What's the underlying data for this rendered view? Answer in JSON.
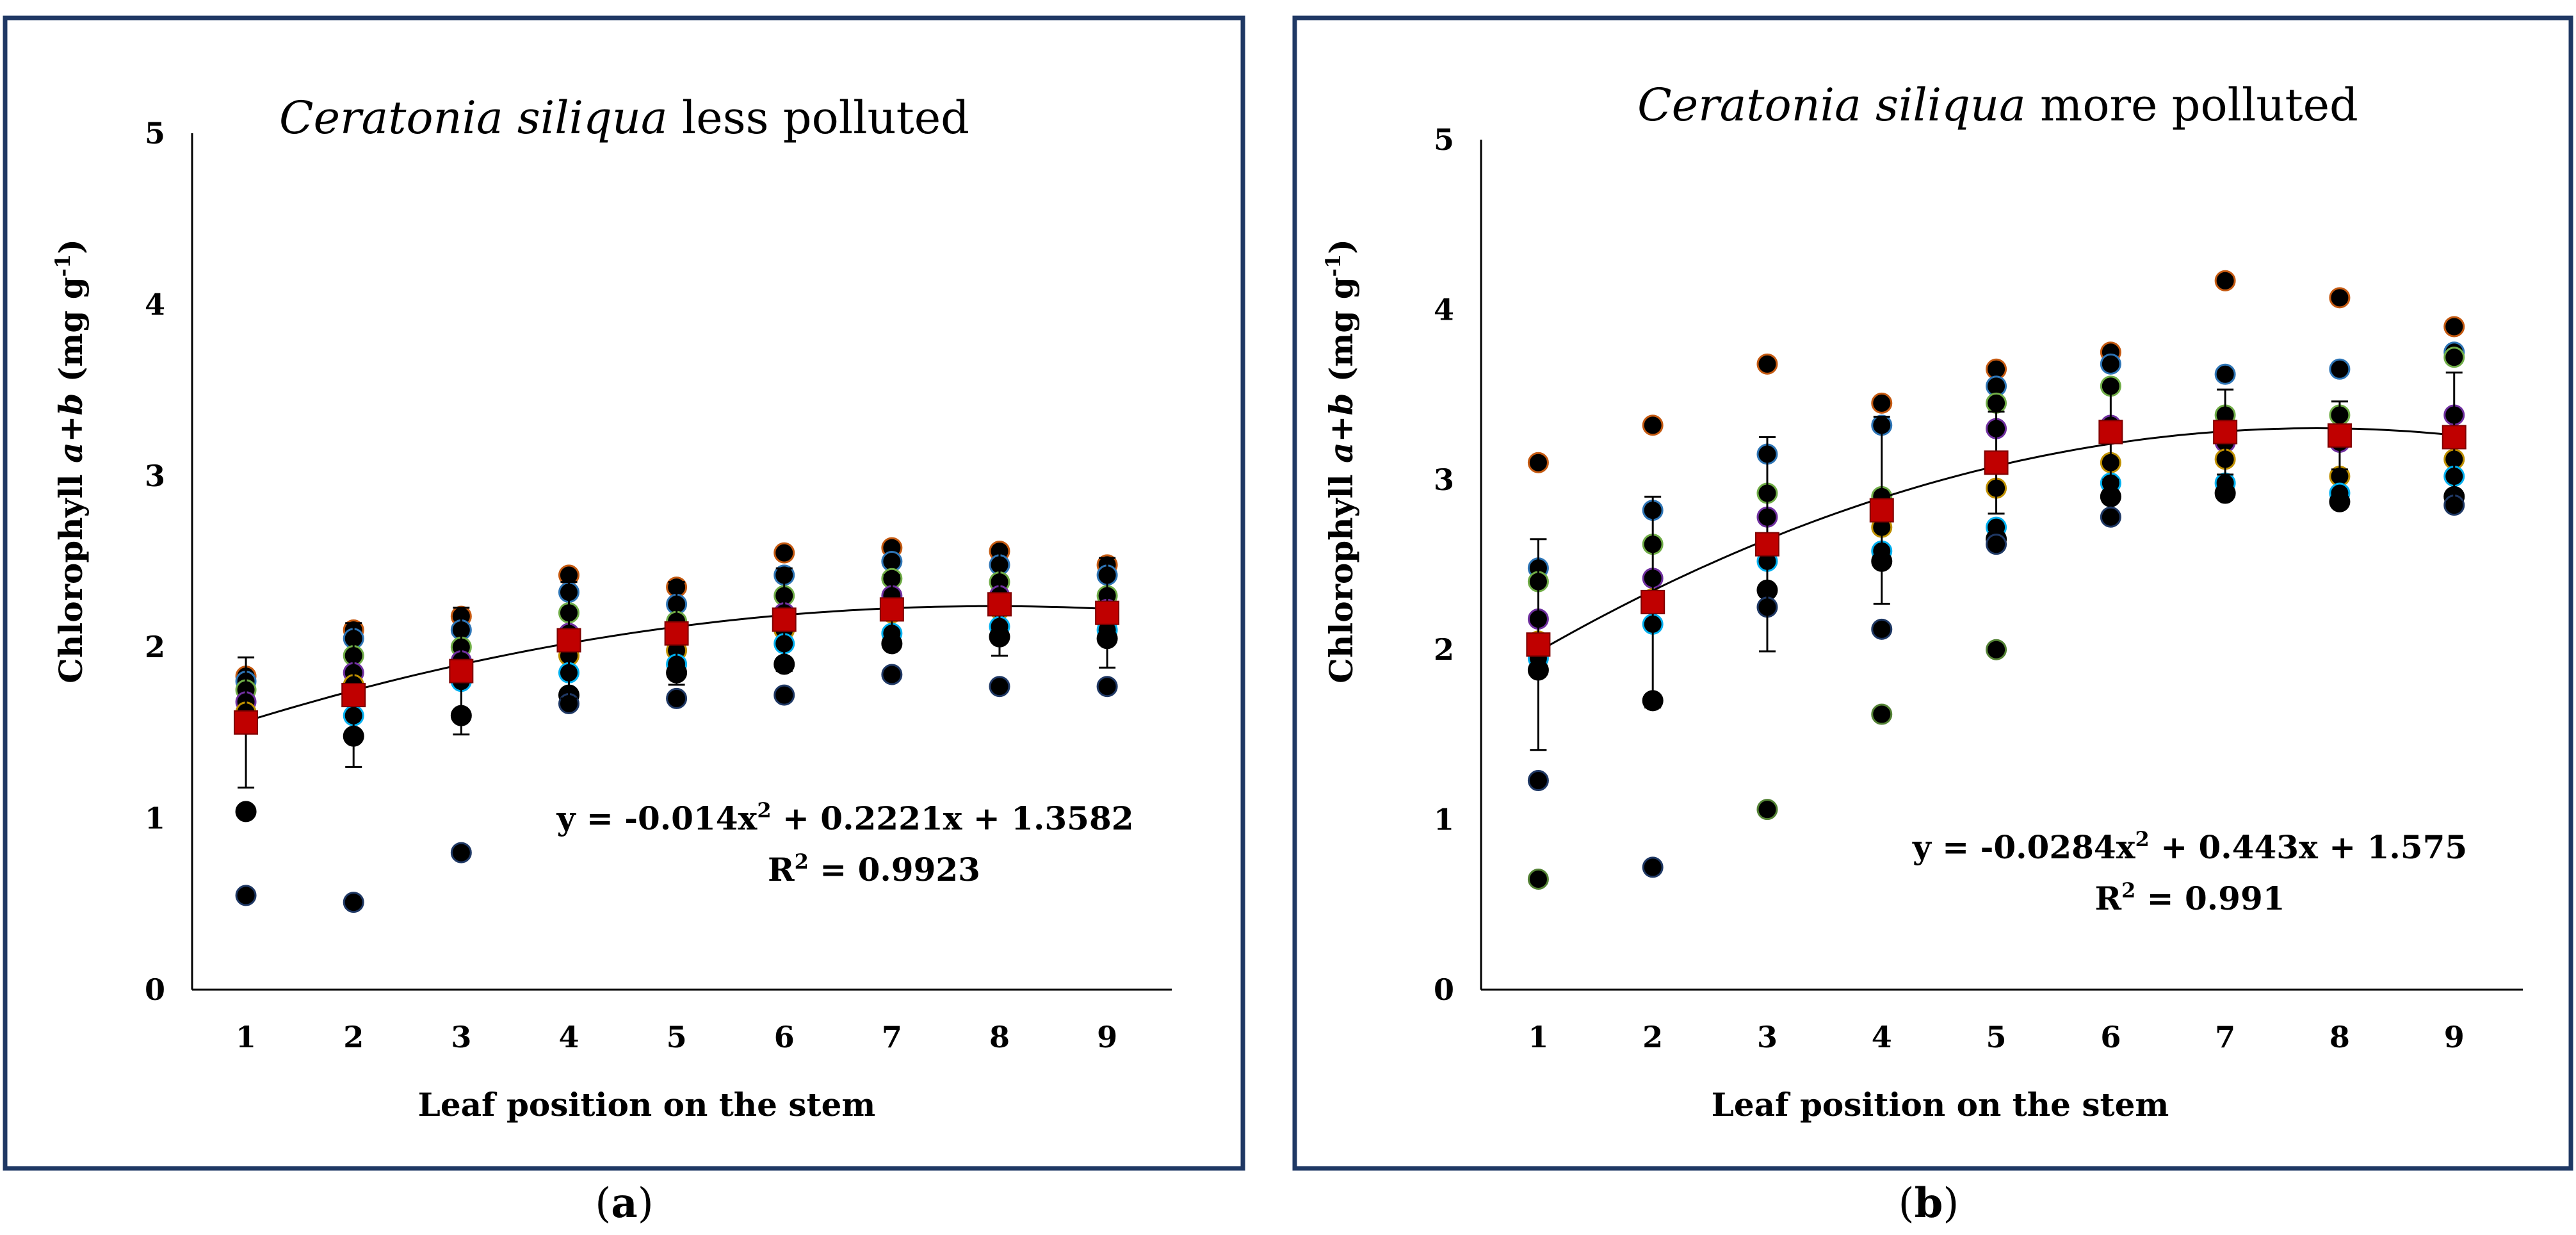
{
  "chart_data": [
    {
      "type": "scatter",
      "panel": "a",
      "title_italic": "Ceratonia siliqua",
      "title_rest": " less polluted",
      "xlabel": "Leaf position on the stem",
      "ylabel_prefix": "Chlorophyll",
      "ylabel_italic": "a+b",
      "ylabel_unit": "(mg g",
      "ylabel_sup": "-1",
      "ylabel_close": ")",
      "xlim": [
        0.5,
        9.6
      ],
      "ylim": [
        0,
        5
      ],
      "xticks": [
        1,
        2,
        3,
        4,
        5,
        6,
        7,
        8,
        9
      ],
      "yticks": [
        0,
        1,
        2,
        3,
        4,
        5
      ],
      "points": [
        [
          [
            1.83,
            1.8,
            1.75,
            1.68,
            1.62,
            1.55,
            1.04,
            0.55
          ],
          [
            2.1,
            2.05,
            1.95,
            1.85,
            1.78,
            1.6,
            1.48,
            0.51
          ],
          [
            2.18,
            2.1,
            2.0,
            1.92,
            1.85,
            1.8,
            1.6,
            0.8
          ],
          [
            2.42,
            2.32,
            2.2,
            2.08,
            1.95,
            1.85,
            1.72,
            1.67
          ],
          [
            2.35,
            2.25,
            2.15,
            2.05,
            1.98,
            1.9,
            1.85,
            1.7
          ],
          [
            2.55,
            2.42,
            2.3,
            2.2,
            2.1,
            2.02,
            1.9,
            1.72
          ],
          [
            2.58,
            2.5,
            2.4,
            2.3,
            2.2,
            2.08,
            2.02,
            1.84
          ],
          [
            2.56,
            2.48,
            2.38,
            2.3,
            2.22,
            2.12,
            2.06,
            1.77
          ],
          [
            2.48,
            2.42,
            2.3,
            2.22,
            2.15,
            2.1,
            2.05,
            1.77
          ]
        ]
      ],
      "means": [
        1.56,
        1.72,
        1.86,
        2.04,
        2.08,
        2.16,
        2.22,
        2.25,
        2.2
      ],
      "errors": [
        0.38,
        0.42,
        0.37,
        0.34,
        0.3,
        0.3,
        0.2,
        0.3,
        0.32
      ],
      "fit": {
        "a": -0.014,
        "b": 0.2221,
        "c": 1.3582
      },
      "equation_lhs": "y = -0.014x",
      "equation_sup": "2",
      "equation_rhs": " + 0.2221x + 1.3582",
      "r2_label": "R",
      "r2_sup": "2",
      "r2_value": " = 0.9923",
      "caption_open": "(",
      "caption_letter": "a",
      "caption_close": ")"
    },
    {
      "type": "scatter",
      "panel": "b",
      "title_italic": "Ceratonia siliqua",
      "title_rest": " more polluted",
      "xlabel": "Leaf position on the stem",
      "ylabel_prefix": "Chlorophyll",
      "ylabel_italic": "a+b",
      "ylabel_unit": "(mg g",
      "ylabel_sup": "-1",
      "ylabel_close": ")",
      "xlim": [
        0.5,
        9.6
      ],
      "ylim": [
        0,
        5
      ],
      "xticks": [
        1,
        2,
        3,
        4,
        5,
        6,
        7,
        8,
        9
      ],
      "yticks": [
        0,
        1,
        2,
        3,
        4,
        5
      ],
      "points": [
        [
          [
            3.1,
            2.48,
            2.4,
            2.18,
            2.05,
            1.95,
            1.88,
            1.23,
            0.65
          ],
          [
            3.32,
            2.82,
            2.62,
            2.42,
            2.3,
            2.15,
            1.7,
            0.72
          ],
          [
            3.68,
            3.15,
            2.92,
            2.78,
            2.62,
            2.52,
            2.35,
            2.25,
            1.06
          ],
          [
            3.45,
            3.32,
            2.9,
            2.82,
            2.72,
            2.58,
            2.52,
            2.12,
            1.62
          ],
          [
            3.65,
            3.55,
            3.45,
            3.3,
            2.95,
            2.72,
            2.65,
            2.62,
            2.0
          ],
          [
            3.75,
            3.68,
            3.55,
            3.32,
            3.1,
            2.98,
            2.9,
            2.78
          ],
          [
            4.17,
            3.62,
            3.38,
            3.22,
            3.12,
            2.98,
            2.92
          ],
          [
            4.07,
            3.65,
            3.38,
            3.22,
            3.02,
            2.92,
            2.87
          ],
          [
            3.9,
            3.75,
            3.72,
            3.38,
            3.12,
            3.02,
            2.9,
            2.85
          ]
        ]
      ],
      "means": [
        2.03,
        2.28,
        2.62,
        2.82,
        3.1,
        3.28,
        3.28,
        3.26,
        3.25
      ],
      "errors": [
        0.62,
        0.62,
        0.63,
        0.55,
        0.3,
        0.28,
        0.25,
        0.2,
        0.38
      ],
      "fit": {
        "a": -0.0284,
        "b": 0.443,
        "c": 1.575
      },
      "equation_lhs": "y = -0.0284x",
      "equation_sup": "2",
      "equation_rhs": " + 0.443x + 1.575",
      "r2_label": "R",
      "r2_sup": "2",
      "r2_value": " = 0.991",
      "caption_open": "(",
      "caption_letter": "b",
      "caption_close": ")"
    }
  ],
  "colors": {
    "frame": "#1f3864",
    "mean_marker": "#c00000",
    "point_fill": "#000000",
    "point_edges": [
      "#c55a11",
      "#2e75b6",
      "#70ad47",
      "#7030a0",
      "#bf9000",
      "#00b0f0",
      "#000000",
      "#1f3864",
      "#548235"
    ]
  }
}
